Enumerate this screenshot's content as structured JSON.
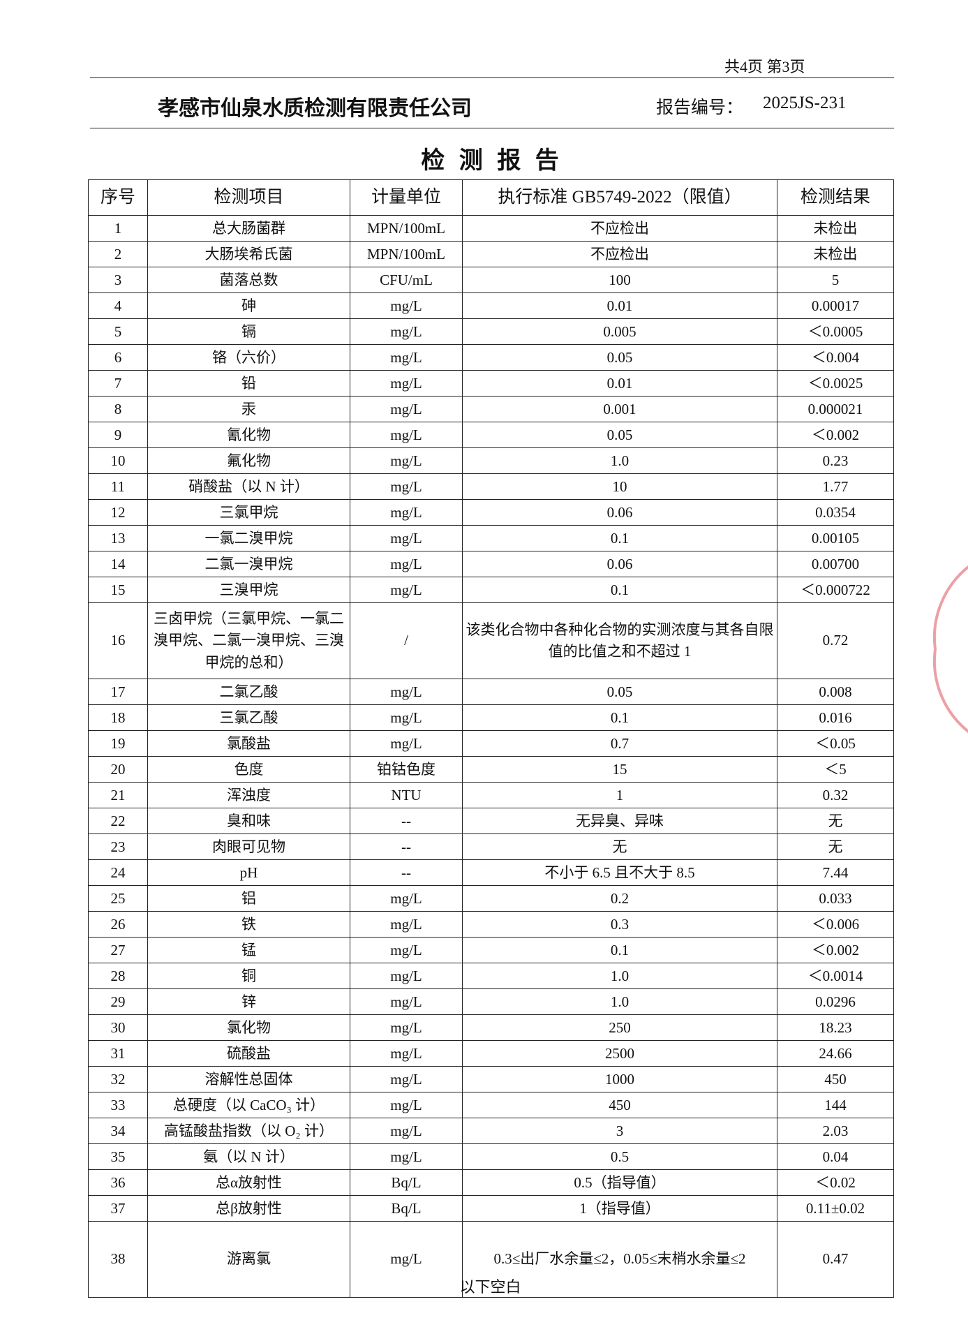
{
  "header": {
    "page_info": "共4页 第3页",
    "company": "孝感市仙泉水质检测有限责任公司",
    "report_no_label": "报告编号：",
    "report_no": "2025JS-231"
  },
  "title": "检 测 报 告",
  "table": {
    "columns": [
      "序号",
      "检测项目",
      "计量单位",
      "执行标准 GB5749-2022（限值）",
      "检测结果"
    ],
    "rows": [
      [
        "1",
        "总大肠菌群",
        "MPN/100mL",
        "不应检出",
        "未检出"
      ],
      [
        "2",
        "大肠埃希氏菌",
        "MPN/100mL",
        "不应检出",
        "未检出"
      ],
      [
        "3",
        "菌落总数",
        "CFU/mL",
        "100",
        "5"
      ],
      [
        "4",
        "砷",
        "mg/L",
        "0.01",
        "0.00017"
      ],
      [
        "5",
        "镉",
        "mg/L",
        "0.005",
        "＜0.0005"
      ],
      [
        "6",
        "铬（六价）",
        "mg/L",
        "0.05",
        "＜0.004"
      ],
      [
        "7",
        "铅",
        "mg/L",
        "0.01",
        "＜0.0025"
      ],
      [
        "8",
        "汞",
        "mg/L",
        "0.001",
        "0.000021"
      ],
      [
        "9",
        "氰化物",
        "mg/L",
        "0.05",
        "＜0.002"
      ],
      [
        "10",
        "氟化物",
        "mg/L",
        "1.0",
        "0.23"
      ],
      [
        "11",
        "硝酸盐（以 N 计）",
        "mg/L",
        "10",
        "1.77"
      ],
      [
        "12",
        "三氯甲烷",
        "mg/L",
        "0.06",
        "0.0354"
      ],
      [
        "13",
        "一氯二溴甲烷",
        "mg/L",
        "0.1",
        "0.00105"
      ],
      [
        "14",
        "二氯一溴甲烷",
        "mg/L",
        "0.06",
        "0.00700"
      ],
      [
        "15",
        "三溴甲烷",
        "mg/L",
        "0.1",
        "＜0.000722"
      ],
      [
        "16",
        "三卤甲烷（三氯甲烷、一氯二溴甲烷、二氯一溴甲烷、三溴甲烷的总和）",
        "/",
        "该类化合物中各种化合物的实测浓度与其各自限值的比值之和不超过 1",
        "0.72"
      ],
      [
        "17",
        "二氯乙酸",
        "mg/L",
        "0.05",
        "0.008"
      ],
      [
        "18",
        "三氯乙酸",
        "mg/L",
        "0.1",
        "0.016"
      ],
      [
        "19",
        "氯酸盐",
        "mg/L",
        "0.7",
        "＜0.05"
      ],
      [
        "20",
        "色度",
        "铂钴色度",
        "15",
        "＜5"
      ],
      [
        "21",
        "浑浊度",
        "NTU",
        "1",
        "0.32"
      ],
      [
        "22",
        "臭和味",
        "--",
        "无异臭、异味",
        "无"
      ],
      [
        "23",
        "肉眼可见物",
        "--",
        "无",
        "无"
      ],
      [
        "24",
        "pH",
        "--",
        "不小于 6.5 且不大于 8.5",
        "7.44"
      ],
      [
        "25",
        "铝",
        "mg/L",
        "0.2",
        "0.033"
      ],
      [
        "26",
        "铁",
        "mg/L",
        "0.3",
        "＜0.006"
      ],
      [
        "27",
        "锰",
        "mg/L",
        "0.1",
        "＜0.002"
      ],
      [
        "28",
        "铜",
        "mg/L",
        "1.0",
        "＜0.0014"
      ],
      [
        "29",
        "锌",
        "mg/L",
        "1.0",
        "0.0296"
      ],
      [
        "30",
        "氯化物",
        "mg/L",
        "250",
        "18.23"
      ],
      [
        "31",
        "硫酸盐",
        "mg/L",
        "2500",
        "24.66"
      ],
      [
        "32",
        "溶解性总固体",
        "mg/L",
        "1000",
        "450"
      ],
      [
        "33",
        "总硬度（以 CaCO₃ 计）",
        "mg/L",
        "450",
        "144"
      ],
      [
        "34",
        "高锰酸盐指数（以 O₂ 计）",
        "mg/L",
        "3",
        "2.03"
      ],
      [
        "35",
        "氨（以 N 计）",
        "mg/L",
        "0.5",
        "0.04"
      ],
      [
        "36",
        "总α放射性",
        "Bq/L",
        "0.5（指导值）",
        "＜0.02"
      ],
      [
        "37",
        "总β放射性",
        "Bq/L",
        "1（指导值）",
        "0.11±0.02"
      ],
      [
        "38",
        "游离氯",
        "mg/L",
        "0.3≤出厂水余量≤2，0.05≤末梢水余量≤2",
        "0.47"
      ]
    ]
  },
  "footer": "以下空白"
}
